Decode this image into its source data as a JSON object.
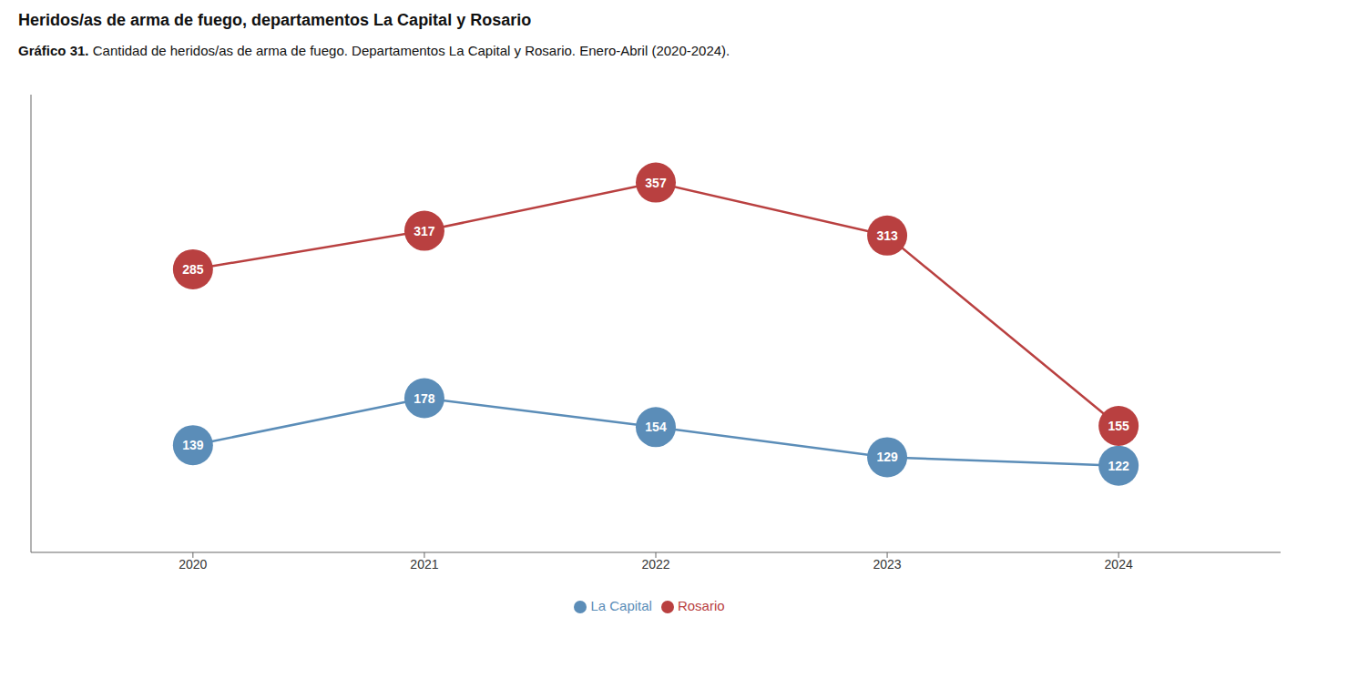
{
  "chart_data": {
    "type": "line",
    "title": "Heridos/as de arma de fuego, departamentos La Capital y Rosario",
    "subtitle_bold": "Gráfico 31.",
    "subtitle": "Cantidad de heridos/as de arma de fuego. Departamentos La Capital y Rosario. Enero-Abril (2020-2024).",
    "x": [
      2020,
      2021,
      2022,
      2023,
      2024
    ],
    "series": [
      {
        "name": "La Capital",
        "color": "#5b8db8",
        "values": [
          139,
          178,
          154,
          129,
          122
        ]
      },
      {
        "name": "Rosario",
        "color": "#b94040",
        "values": [
          285,
          317,
          357,
          313,
          155
        ]
      }
    ],
    "xlim": [
      2019.3,
      2024.7
    ],
    "xticks": [
      2020,
      2021,
      2022,
      2023,
      2024
    ],
    "ylim": [
      50,
      430
    ],
    "grid": false,
    "legend": "bottom",
    "data_labels": true,
    "tick_labels": "x",
    "marker": "circle",
    "line_style": "solid"
  }
}
